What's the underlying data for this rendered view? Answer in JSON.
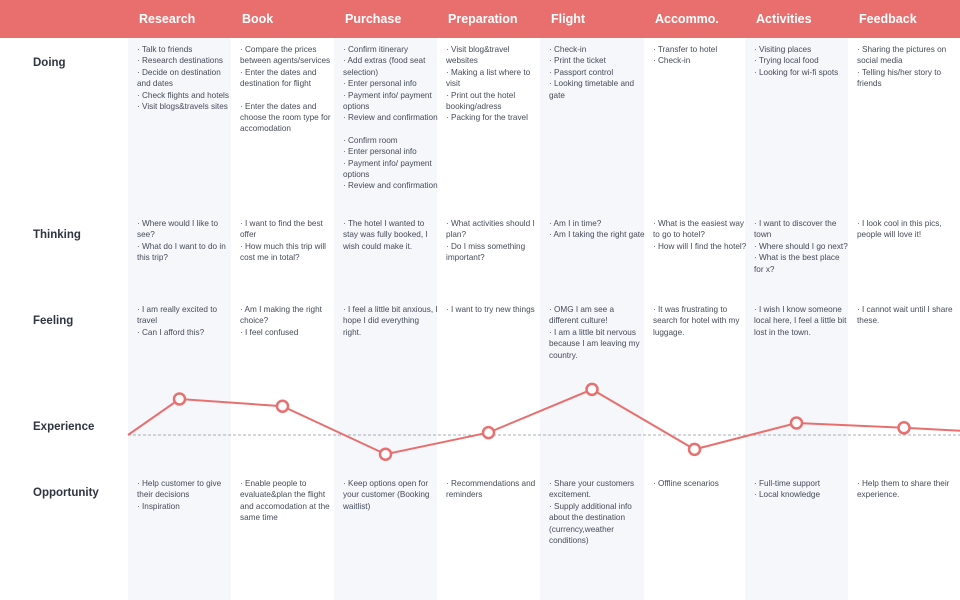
{
  "stages": [
    "Research",
    "Book",
    "Purchase",
    "Preparation",
    "Flight",
    "Accommo.",
    "Activities",
    "Feedback"
  ],
  "rows": {
    "doing": "Doing",
    "thinking": "Thinking",
    "feeling": "Feeling",
    "experience": "Experience",
    "opportunity": "Opportunity"
  },
  "doing": [
    [
      "· Talk to friends",
      "· Research destinations",
      "· Decide on destination and dates",
      "· Check flights and hotels",
      "· Visit blogs&travels sites"
    ],
    [
      "· Compare the prices between agents/services",
      "· Enter the dates and destination for flight",
      "",
      "· Enter the dates and choose the room type for accomodation"
    ],
    [
      "· Confirm itinerary",
      "· Add extras (food seat selection)",
      "· Enter personal info",
      "· Payment info/ payment options",
      "· Review and confirmation",
      "",
      "· Confirm room",
      "· Enter personal info",
      "· Payment info/ payment options",
      "· Review and confirmation"
    ],
    [
      "· Visit blog&travel websites",
      "· Making a list where to visit",
      "· Print out the hotel booking/adress",
      "· Packing for the travel"
    ],
    [
      "· Check-in",
      "· Print the ticket",
      "· Passport control",
      "· Looking timetable and gate"
    ],
    [
      "· Transfer to hotel",
      "· Check-in"
    ],
    [
      "· Visiting places",
      "· Trying local food",
      "· Looking for wi-fi spots"
    ],
    [
      "· Sharing the pictures on social media",
      "· Telling his/her story to friends"
    ]
  ],
  "thinking": [
    [
      "· Where would I like to see?",
      "· What do I want to do in this trip?"
    ],
    [
      "· I want to find the best offer",
      "· How much this trip will cost me in total?"
    ],
    [
      "· The hotel I wanted to stay was fully booked, I wish could make it."
    ],
    [
      "· What activities should I plan?",
      "· Do I miss something important?"
    ],
    [
      "· Am I in time?",
      "· Am I taking the right gate"
    ],
    [
      "· What is the easiest way to go to hotel?",
      "· How will I find the hotel?"
    ],
    [
      "· I want to discover the town",
      "· Where should I go next?",
      "· What is the best place for x?"
    ],
    [
      "· I look cool in this pics, people will love it!"
    ]
  ],
  "feeling": [
    [
      "· I am really excited to travel",
      "· Can I afford this?"
    ],
    [
      "· Am I making the right choice?",
      "· I feel confused"
    ],
    [
      "· I feel a little bit anxious, I hope I did everything right."
    ],
    [
      "· I want to try new things"
    ],
    [
      "· OMG I am see a different culture!",
      "· I am a little bit nervous because I am leaving my country."
    ],
    [
      "· It was frustrating to search for hotel with my luggage."
    ],
    [
      "· I wish I know someone local here, I feel a little bit lost in the town."
    ],
    [
      "· I cannot wait until I share these."
    ]
  ],
  "opportunity": [
    [
      "· Help customer to give their decisions",
      "· Inspiration"
    ],
    [
      "· Enable people to evaluate&plan the flight and accomodation at the same time"
    ],
    [
      "· Keep options open for your customer (Booking waitlist)"
    ],
    [
      "· Recommendations and reminders"
    ],
    [
      "· Share your customers excitement.",
      "· Supply additional info about the destination (currency,weather conditions)"
    ],
    [
      "· Offline scenarios"
    ],
    [
      "· Full-time support",
      "· Local knowledge"
    ],
    [
      "· Help them to share their experience."
    ]
  ],
  "experience": [
    1.5,
    1.2,
    -0.8,
    0.1,
    1.9,
    -0.6,
    0.5,
    0.3
  ],
  "colors": {
    "accent": "#e96f6f",
    "shade": "#f5f7fb",
    "baseline": "#8d939c"
  }
}
